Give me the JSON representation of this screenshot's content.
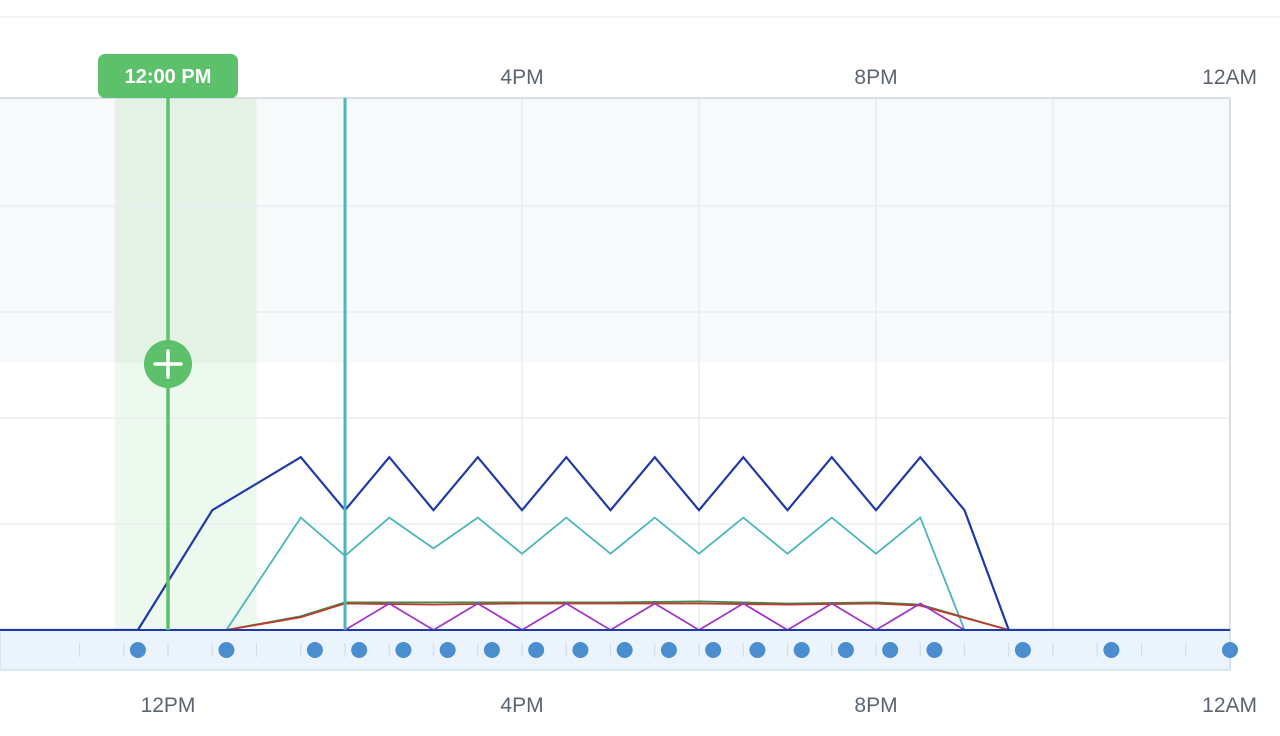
{
  "chart_data": {
    "type": "line",
    "x_ticks_top": [
      "4PM",
      "8PM",
      "12AM"
    ],
    "x_ticks_bottom": [
      "12PM",
      "4PM",
      "8PM",
      "12AM"
    ],
    "x_range_hours": [
      10.1,
      24
    ],
    "grid": true,
    "highlight_band": {
      "start_hour": 11.4,
      "end_hour": 13
    },
    "cursor": {
      "hour": 12,
      "label": "12:00 PM"
    },
    "marker_line": {
      "hour": 14.0
    },
    "series": [
      {
        "color": "#1f3aa8",
        "x": [
          10.1,
          11.66,
          12.5,
          13.5,
          14.0,
          14.5,
          15.0,
          15.5,
          16.0,
          16.5,
          17.0,
          17.5,
          18.0,
          18.5,
          19.0,
          19.5,
          20.0,
          20.5,
          21.0,
          21.5,
          22.5,
          24
        ],
        "y": [
          0,
          0,
          1.13,
          1.63,
          1.13,
          1.63,
          1.13,
          1.63,
          1.13,
          1.63,
          1.13,
          1.63,
          1.13,
          1.63,
          1.13,
          1.63,
          1.13,
          1.63,
          1.13,
          0,
          0,
          0
        ]
      },
      {
        "color": "#49b6bd",
        "x": [
          10.1,
          12.66,
          13.5,
          14.0,
          14.5,
          15.0,
          15.5,
          16.0,
          16.5,
          17.0,
          17.5,
          18.0,
          18.5,
          19.0,
          19.5,
          20.0,
          20.5,
          21.0,
          22.5,
          24
        ],
        "y": [
          0,
          0,
          1.06,
          0.7,
          1.06,
          0.77,
          1.06,
          0.72,
          1.06,
          0.72,
          1.06,
          0.72,
          1.06,
          0.72,
          1.06,
          0.72,
          1.06,
          0,
          0,
          0
        ]
      },
      {
        "color": "#3d8a4f",
        "x": [
          10.1,
          12.66,
          13.5,
          14.0,
          15.0,
          16.0,
          17.0,
          18.0,
          19.0,
          20.0,
          20.5,
          21.5,
          24
        ],
        "y": [
          0,
          0,
          0.13,
          0.26,
          0.26,
          0.26,
          0.26,
          0.27,
          0.25,
          0.26,
          0.24,
          0,
          0
        ]
      },
      {
        "color": "#c0392b",
        "x": [
          10.1,
          12.66,
          13.5,
          14.0,
          15.0,
          16.0,
          17.0,
          18.0,
          19.0,
          20.0,
          20.5,
          21.5,
          24
        ],
        "y": [
          0,
          0,
          0.12,
          0.25,
          0.24,
          0.25,
          0.25,
          0.25,
          0.24,
          0.25,
          0.23,
          0,
          0
        ]
      },
      {
        "color": "#a434c6",
        "x": [
          10.1,
          14.0,
          14.5,
          15.0,
          15.5,
          16.0,
          16.5,
          17.0,
          17.5,
          18.0,
          18.5,
          19.0,
          19.5,
          20.0,
          20.5,
          21.0,
          24
        ],
        "y": [
          0,
          0,
          0.25,
          0,
          0.25,
          0,
          0.25,
          0,
          0.25,
          0,
          0.25,
          0,
          0.25,
          0,
          0.25,
          0,
          0
        ]
      }
    ],
    "event_dots_hours": [
      11.66,
      12.66,
      13.66,
      14.16,
      14.66,
      15.16,
      15.66,
      16.16,
      16.66,
      17.16,
      17.66,
      18.16,
      18.66,
      19.16,
      19.66,
      20.16,
      20.66,
      21.66,
      22.66,
      24
    ],
    "colors": {
      "grid": "#e9edf1",
      "border": "#cdd6de",
      "upper_shade": "#f7f9fb",
      "band": "#edf8ee",
      "band_dark": "#e4f2e6",
      "cursor": "#5cc16a",
      "marker": "#49b6bd",
      "strip_fill": "#ebf3fc",
      "strip_border": "#c6daf0",
      "dot": "#4a8ed0"
    }
  }
}
